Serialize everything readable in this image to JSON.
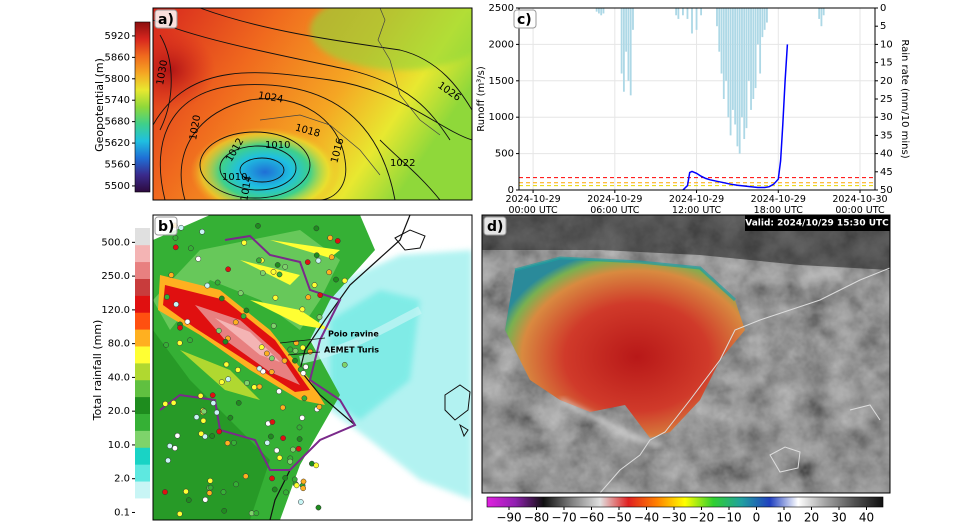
{
  "chart_data": [
    {
      "type": "map",
      "label": "a)",
      "colorbar": {
        "orientation": "vertical",
        "label": "Geopotential (m)",
        "lim": [
          5483,
          5959
        ],
        "ticks": [
          5500,
          5560,
          5620,
          5680,
          5740,
          5800,
          5860,
          5920
        ],
        "colors": [
          "#2d0a3e",
          "#3a2a8c",
          "#1f6fd6",
          "#1fc0e0",
          "#3fd08a",
          "#8fd83a",
          "#e8e830",
          "#f5a623",
          "#f06a1e",
          "#d7261e",
          "#8b0f0f"
        ]
      },
      "contour_labels": [
        "1030",
        "1024",
        "1026",
        "1020",
        "1018",
        "1016",
        "1012",
        "1010",
        "1010",
        "1022",
        "1014"
      ]
    },
    {
      "type": "map",
      "label": "b)",
      "colorbar": {
        "orientation": "vertical",
        "discrete": true,
        "label": "Total rainfall (mm)",
        "ticks": [
          {
            "value": 0.1,
            "label": "0.1"
          },
          {
            "value": 2,
            "label": "2.0"
          },
          {
            "value": 10,
            "label": "10.0"
          },
          {
            "value": 20,
            "label": "20.0"
          },
          {
            "value": 40,
            "label": "40.0"
          },
          {
            "value": 80,
            "label": "80.0"
          },
          {
            "value": 120,
            "label": "120.0"
          },
          {
            "value": 250,
            "label": "250.0"
          },
          {
            "value": 500,
            "label": "500.0"
          }
        ],
        "colors": [
          "#ffffff",
          "#c8f5f5",
          "#5ee8e0",
          "#19d3c5",
          "#7ed36b",
          "#35b035",
          "#1e8c1e",
          "#60c040",
          "#b0d830",
          "#ffff33",
          "#ffb020",
          "#ff5010",
          "#e01010",
          "#c83c3c",
          "#e88080",
          "#f4b4b4",
          "#e0e0e0"
        ]
      },
      "annotations": [
        "Poio ravine",
        "AEMET Turis"
      ]
    },
    {
      "type": "line",
      "label": "c)",
      "ylabel": "Runoff (m³/s)",
      "y2label": "Rain rate (mm/10 mins)",
      "xlim": [
        "2024-10-28T22:58",
        "2024-10-30T01:06"
      ],
      "xticks": [
        {
          "value": "2024-10-29T00:00",
          "label": "2024-10-29 00:00 UTC"
        },
        {
          "value": "2024-10-29T06:00",
          "label": "2024-10-29 06:00 UTC"
        },
        {
          "value": "2024-10-29T12:00",
          "label": "2024-10-29 12:00 UTC"
        },
        {
          "value": "2024-10-29T18:00",
          "label": "2024-10-29 18:00 UTC"
        },
        {
          "value": "2024-10-30T00:00",
          "label": "2024-10-30 00:00 UTC"
        }
      ],
      "ylim": [
        0,
        2500
      ],
      "yticks": [
        0,
        500,
        1000,
        1500,
        2000,
        2500
      ],
      "y2lim": [
        50,
        0
      ],
      "y2ticks": [
        0,
        5,
        10,
        15,
        20,
        25,
        30,
        35,
        40,
        45,
        50
      ],
      "grid": true,
      "series": [
        {
          "type": "bar",
          "axis": "y2",
          "color": "#add8e6",
          "x": [
            "2024-10-29T04:40",
            "2024-10-29T04:50",
            "2024-10-29T05:00",
            "2024-10-29T05:10",
            "2024-10-29T06:30",
            "2024-10-29T06:40",
            "2024-10-29T06:50",
            "2024-10-29T07:00",
            "2024-10-29T07:10",
            "2024-10-29T07:20",
            "2024-10-29T10:30",
            "2024-10-29T10:40",
            "2024-10-29T11:00",
            "2024-10-29T11:20",
            "2024-10-29T11:40",
            "2024-10-29T12:00",
            "2024-10-29T12:20",
            "2024-10-29T13:30",
            "2024-10-29T13:40",
            "2024-10-29T13:50",
            "2024-10-29T14:00",
            "2024-10-29T14:10",
            "2024-10-29T14:20",
            "2024-10-29T14:30",
            "2024-10-29T14:40",
            "2024-10-29T14:50",
            "2024-10-29T15:00",
            "2024-10-29T15:10",
            "2024-10-29T15:20",
            "2024-10-29T15:30",
            "2024-10-29T15:40",
            "2024-10-29T15:50",
            "2024-10-29T16:00",
            "2024-10-29T16:10",
            "2024-10-29T16:20",
            "2024-10-29T16:30",
            "2024-10-29T16:40",
            "2024-10-29T16:50",
            "2024-10-29T17:00",
            "2024-10-29T17:10",
            "2024-10-29T21:00",
            "2024-10-29T21:10",
            "2024-10-29T21:20"
          ],
          "values": [
            1,
            1.5,
            2,
            1.5,
            18,
            23,
            12,
            20,
            24,
            6,
            2,
            3,
            2,
            3,
            7,
            6,
            2,
            5,
            12,
            18,
            25,
            20,
            30,
            35,
            28,
            32,
            38,
            40,
            30,
            36,
            33,
            20,
            28,
            25,
            22,
            10,
            18,
            8,
            6,
            4,
            3,
            5,
            2
          ]
        },
        {
          "type": "line",
          "color": "#0000ff",
          "x": [
            "2024-10-29T11:00",
            "2024-10-29T11:20",
            "2024-10-29T11:30",
            "2024-10-29T11:40",
            "2024-10-29T12:00",
            "2024-10-29T12:20",
            "2024-10-29T12:40",
            "2024-10-29T13:00",
            "2024-10-29T13:30",
            "2024-10-29T14:00",
            "2024-10-29T14:30",
            "2024-10-29T15:00",
            "2024-10-29T15:30",
            "2024-10-29T16:00",
            "2024-10-29T16:30",
            "2024-10-29T17:00",
            "2024-10-29T17:20",
            "2024-10-29T17:40",
            "2024-10-29T18:00",
            "2024-10-29T18:10",
            "2024-10-29T18:20",
            "2024-10-29T18:30",
            "2024-10-29T18:40"
          ],
          "values": [
            0,
            60,
            240,
            255,
            230,
            190,
            160,
            140,
            120,
            100,
            80,
            65,
            55,
            45,
            35,
            35,
            45,
            80,
            150,
            400,
            900,
            1500,
            2000
          ]
        }
      ],
      "thresholds": [
        {
          "value": 170,
          "color": "#ff0000"
        },
        {
          "value": 100,
          "color": "#ffa500"
        },
        {
          "value": 60,
          "color": "#e8d800"
        }
      ]
    },
    {
      "type": "map",
      "label": "d)",
      "colorbar": {
        "orientation": "horizontal",
        "lim": [
          -98,
          46
        ],
        "ticks": [
          {
            "value": -90,
            "label": "−90"
          },
          {
            "value": -80,
            "label": "−80"
          },
          {
            "value": -70,
            "label": "−70"
          },
          {
            "value": -60,
            "label": "−60"
          },
          {
            "value": -50,
            "label": "−50"
          },
          {
            "value": -40,
            "label": "−40"
          },
          {
            "value": -30,
            "label": "−30"
          },
          {
            "value": -20,
            "label": "−20"
          },
          {
            "value": -10,
            "label": "−10"
          },
          0,
          10,
          20,
          30,
          40
        ],
        "colors": [
          "#e020e0",
          "#9020b0",
          "#101010",
          "#808080",
          "#e0e0e0",
          "#e02020",
          "#ff8000",
          "#ffff00",
          "#30d030",
          "#20a0a0",
          "#2040c0",
          "#ffffff",
          "#a0a0a0",
          "#505050",
          "#101010"
        ]
      },
      "annotations": [
        "Valid: 2024/10/29 15:30 UTC"
      ]
    }
  ]
}
